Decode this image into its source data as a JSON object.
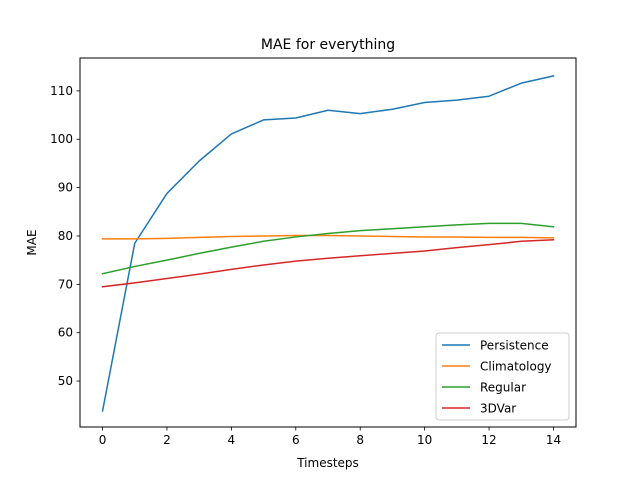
{
  "chart_data": {
    "type": "line",
    "title": "MAE for everything",
    "xlabel": "Timesteps",
    "ylabel": "MAE",
    "xlim": [
      -0.7,
      14.7
    ],
    "ylim": [
      40.5,
      116.8
    ],
    "x_ticks": [
      0,
      2,
      4,
      6,
      8,
      10,
      12,
      14
    ],
    "y_ticks": [
      50,
      60,
      70,
      80,
      90,
      100,
      110
    ],
    "x": [
      0,
      1,
      2,
      3,
      4,
      5,
      6,
      7,
      8,
      9,
      10,
      11,
      12,
      13,
      14
    ],
    "grid": false,
    "legend_position": "lower-right",
    "series": [
      {
        "name": "Persistence",
        "color": "#1f77b4",
        "values": [
          43.8,
          78.5,
          88.8,
          95.5,
          101.1,
          104.0,
          104.4,
          106.0,
          105.3,
          106.2,
          107.6,
          108.1,
          108.9,
          111.6,
          113.1
        ]
      },
      {
        "name": "Climatology",
        "color": "#ff7f0e",
        "values": [
          79.4,
          79.4,
          79.5,
          79.7,
          79.9,
          80.0,
          80.1,
          80.1,
          80.0,
          79.9,
          79.8,
          79.8,
          79.7,
          79.7,
          79.6
        ]
      },
      {
        "name": "Regular",
        "color": "#2ca02c",
        "values": [
          72.2,
          73.7,
          75.0,
          76.4,
          77.7,
          78.9,
          79.8,
          80.5,
          81.1,
          81.5,
          81.9,
          82.3,
          82.6,
          82.6,
          81.9
        ]
      },
      {
        "name": "3DVar",
        "color": "#d62728",
        "values": [
          69.5,
          70.3,
          71.2,
          72.1,
          73.1,
          74.0,
          74.8,
          75.4,
          75.9,
          76.4,
          76.9,
          77.6,
          78.2,
          78.9,
          79.2
        ]
      }
    ]
  }
}
